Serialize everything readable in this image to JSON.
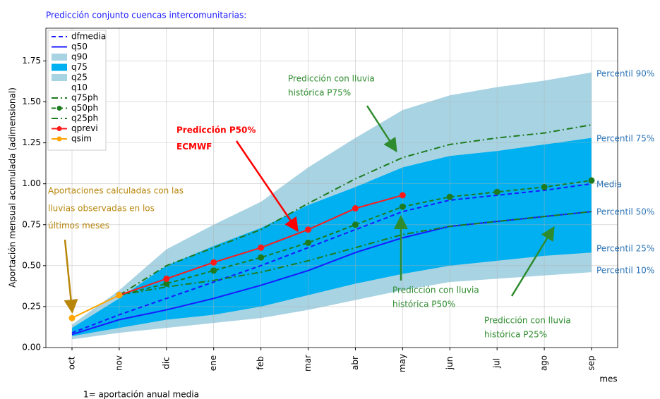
{
  "chart_data": {
    "type": "line",
    "title": "Predicción conjunto cuencas intercomunitarias:",
    "x_label": "mes",
    "y_label": "Aportación mensual acumulada (adimensional)",
    "footnote": "1= aportación anual media",
    "categories": [
      "oct",
      "nov",
      "dic",
      "ene",
      "feb",
      "mar",
      "abr",
      "may",
      "jun",
      "jul",
      "ago",
      "sep"
    ],
    "ylim": [
      0,
      1.95
    ],
    "yticks": [
      {
        "value": 0,
        "label": "0.00"
      },
      {
        "value": 0.25,
        "label": "0.25"
      },
      {
        "value": 0.5,
        "label": "0.50"
      },
      {
        "value": 0.75,
        "label": "0.75"
      },
      {
        "value": 1,
        "label": "1.00"
      },
      {
        "value": 1.25,
        "label": "1.25"
      },
      {
        "value": 1.5,
        "label": "1.50"
      },
      {
        "value": 1.75,
        "label": "1.75"
      }
    ],
    "grid": true,
    "legend": "upper left",
    "series": [
      {
        "name": "dfmedia",
        "color": "#1a1aff",
        "linestyle": "dashed",
        "values": [
          0.09,
          0.2,
          0.3,
          0.4,
          0.5,
          0.61,
          0.72,
          0.83,
          0.9,
          0.93,
          0.96,
          1.0
        ]
      },
      {
        "name": "q50",
        "color": "#1a1aff",
        "linestyle": "solid",
        "values": [
          0.08,
          0.17,
          0.23,
          0.3,
          0.38,
          0.47,
          0.58,
          0.67,
          0.74,
          0.77,
          0.8,
          0.83
        ]
      },
      {
        "name": "q90",
        "color": "#a8d3e3",
        "linestyle": "band",
        "values": [
          0.14,
          0.35,
          0.6,
          0.75,
          0.89,
          1.1,
          1.28,
          1.45,
          1.54,
          1.59,
          1.63,
          1.68
        ]
      },
      {
        "name": "q75",
        "color": "#00b0f0",
        "linestyle": "band",
        "values": [
          0.12,
          0.3,
          0.5,
          0.62,
          0.73,
          0.87,
          0.98,
          1.1,
          1.17,
          1.2,
          1.24,
          1.28
        ]
      },
      {
        "name": "q25",
        "color": "#a8d3e3",
        "linestyle": "band",
        "values": [
          0.07,
          0.12,
          0.17,
          0.2,
          0.25,
          0.32,
          0.39,
          0.45,
          0.5,
          0.53,
          0.56,
          0.58
        ]
      },
      {
        "name": "q10",
        "color": "#ffffff",
        "linestyle": "band",
        "values": [
          0.05,
          0.09,
          0.12,
          0.15,
          0.18,
          0.23,
          0.29,
          0.35,
          0.4,
          0.42,
          0.44,
          0.46
        ]
      },
      {
        "name": "q75ph",
        "color": "#1e7b1e",
        "linestyle": "dashdot",
        "values": [
          null,
          0.32,
          0.5,
          0.61,
          0.72,
          0.88,
          1.03,
          1.16,
          1.24,
          1.28,
          1.31,
          1.36
        ]
      },
      {
        "name": "q50ph",
        "color": "#1e7b1e",
        "linestyle": "dashed",
        "marker": "circle",
        "values": [
          null,
          0.32,
          0.39,
          0.47,
          0.55,
          0.64,
          0.75,
          0.86,
          0.92,
          0.95,
          0.98,
          1.02
        ]
      },
      {
        "name": "q25ph",
        "color": "#1e7b1e",
        "linestyle": "dashdot",
        "values": [
          null,
          0.32,
          0.37,
          0.41,
          0.46,
          0.53,
          0.61,
          0.69,
          0.74,
          0.77,
          0.8,
          0.83
        ]
      },
      {
        "name": "qprevi",
        "color": "#ff1a1a",
        "linestyle": "solid",
        "marker": "circle",
        "values": [
          null,
          0.32,
          0.42,
          0.52,
          0.61,
          0.72,
          0.85,
          0.93,
          null,
          null,
          null,
          null
        ]
      },
      {
        "name": "qsim",
        "color": "#ffa500",
        "linestyle": "solid",
        "marker": "circle",
        "values": [
          0.18,
          0.32,
          null,
          null,
          null,
          null,
          null,
          null,
          null,
          null,
          null,
          null
        ]
      }
    ],
    "annotations": [
      {
        "lines": [
          "Predicción con lluvia",
          "histórica P75%"
        ],
        "color": "#2e8b2e"
      },
      {
        "lines": [
          "Predicción P50%",
          "ECMWF"
        ],
        "color": "#ff0000"
      },
      {
        "lines": [
          "Aportaciones calculadas con las",
          "lluvias observadas en los",
          "últimos meses"
        ],
        "color": "#b8860b"
      },
      {
        "lines": [
          "Predicción con lluvia",
          "histórica P50%"
        ],
        "color": "#2e8b2e"
      },
      {
        "lines": [
          "Predicción con lluvia",
          "histórica P25%"
        ],
        "color": "#2e8b2e"
      }
    ],
    "side_labels": {
      "color": "#2e75b6",
      "texts": [
        "Percentil 90%",
        "Percentil 75%",
        "Media",
        "Percentil 50%",
        "Percentil 25%",
        "Percentil 10%"
      ]
    }
  }
}
